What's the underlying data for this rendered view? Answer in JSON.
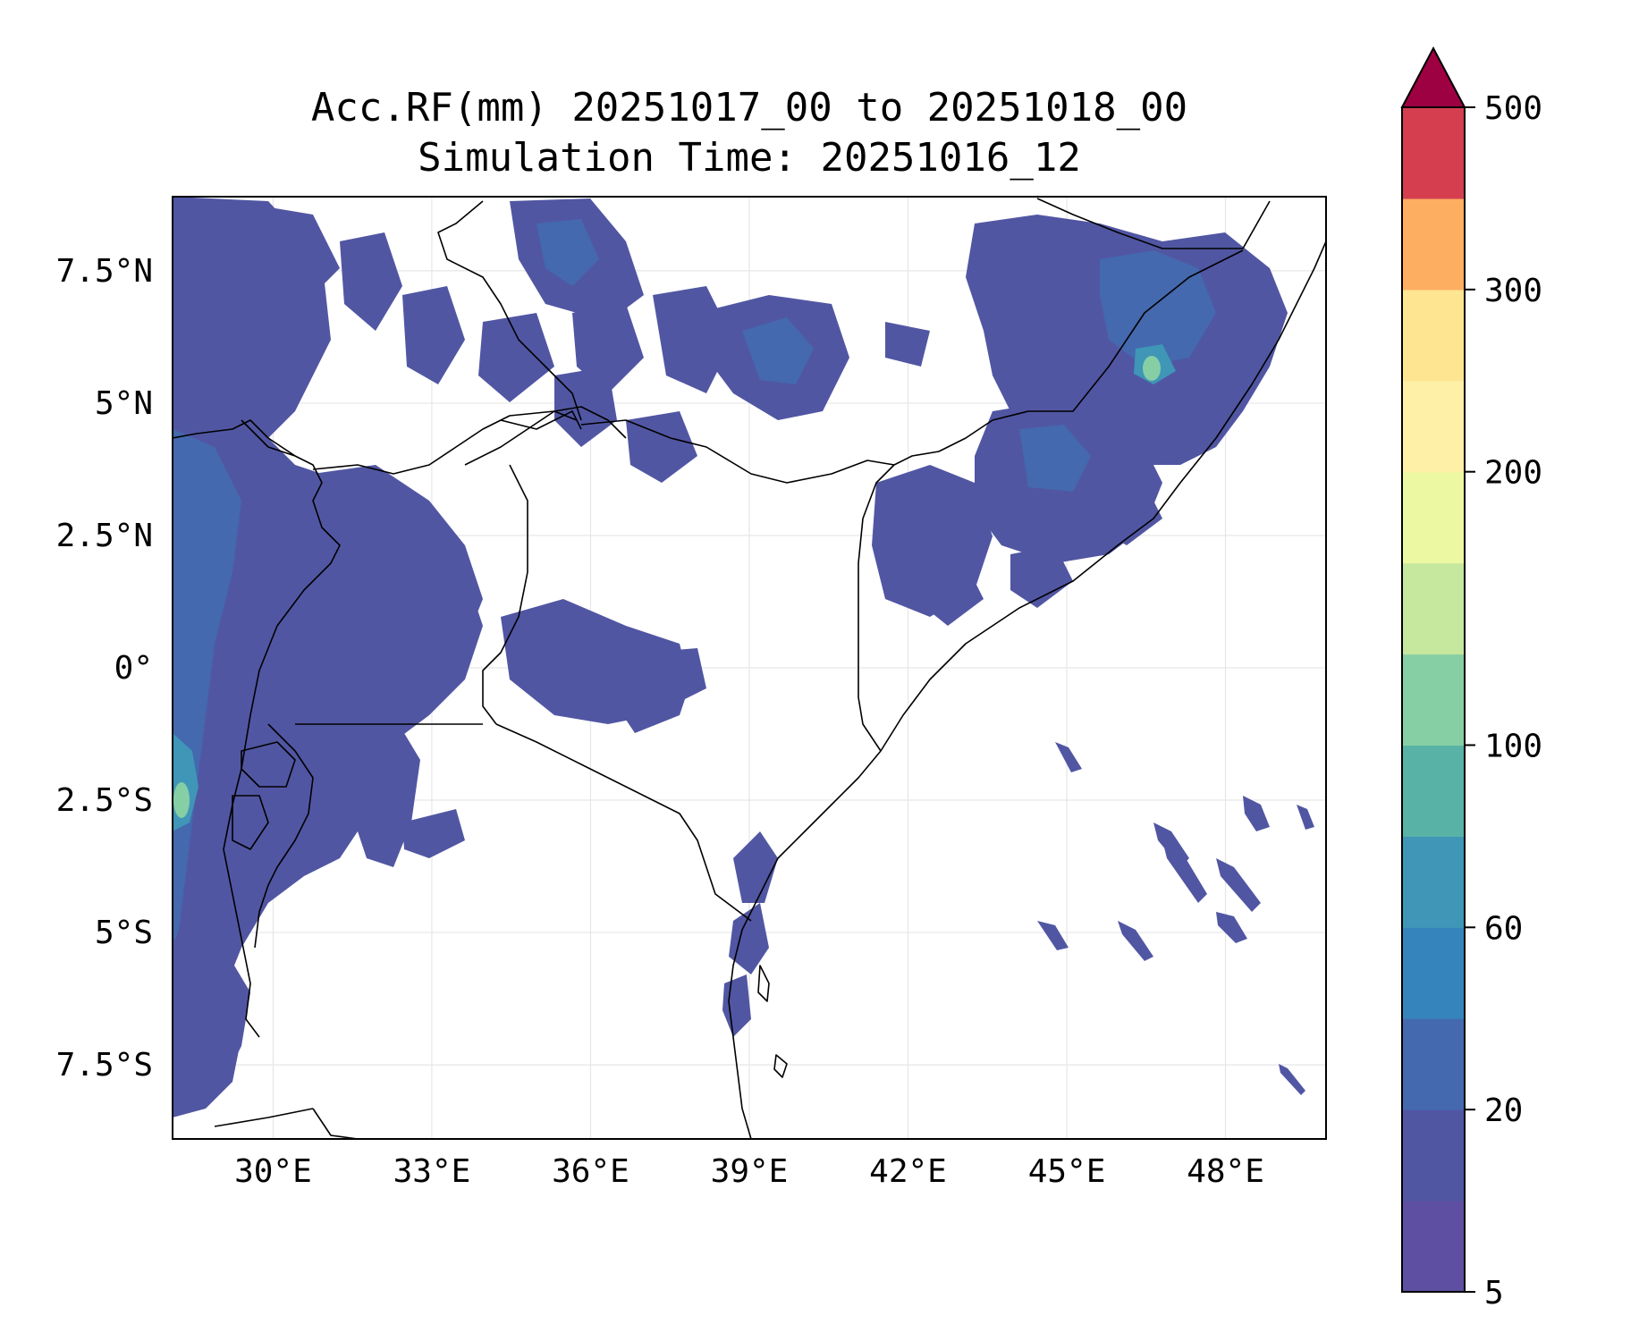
{
  "title": {
    "line1": "Acc.RF(mm) 20251017_00 to 20251018_00",
    "line2": "Simulation Time: 20251016_12"
  },
  "map": {
    "lon_range": [
      28.1,
      49.9
    ],
    "lat_range": [
      -8.9,
      8.9
    ],
    "x_ticks": [
      {
        "value": 30,
        "label": "30°E"
      },
      {
        "value": 33,
        "label": "33°E"
      },
      {
        "value": 36,
        "label": "36°E"
      },
      {
        "value": 39,
        "label": "39°E"
      },
      {
        "value": 42,
        "label": "42°E"
      },
      {
        "value": 45,
        "label": "45°E"
      },
      {
        "value": 48,
        "label": "48°E"
      }
    ],
    "y_ticks": [
      {
        "value": 7.5,
        "label": "7.5°N"
      },
      {
        "value": 5,
        "label": "5°N"
      },
      {
        "value": 2.5,
        "label": "2.5°N"
      },
      {
        "value": 0,
        "label": "0°"
      },
      {
        "value": -2.5,
        "label": "2.5°S"
      },
      {
        "value": -5,
        "label": "5°S"
      },
      {
        "value": -7.5,
        "label": "7.5°S"
      }
    ],
    "gridlines": true
  },
  "colorbar": {
    "levels": [
      5,
      10,
      20,
      40,
      60,
      80,
      100,
      125,
      150,
      200,
      250,
      300,
      350,
      500
    ],
    "colors": [
      "#5e4fa2",
      "#5156a3",
      "#4469ae",
      "#3684bc",
      "#3f96b7",
      "#58b2a5",
      "#86cfa5",
      "#c5e79e",
      "#edf8a3",
      "#fff0a8",
      "#fee592",
      "#fdae61",
      "#d53e4f"
    ],
    "extend_color": "#9e0142",
    "tick_labels": [
      {
        "level_index": 0,
        "label": "5"
      },
      {
        "level_index": 2,
        "label": "20"
      },
      {
        "level_index": 4,
        "label": "60"
      },
      {
        "level_index": 6,
        "label": "100"
      },
      {
        "level_index": 9,
        "label": "200"
      },
      {
        "level_index": 11,
        "label": "300"
      },
      {
        "level_index": 13,
        "label": "500"
      }
    ]
  },
  "rain_colors": {
    "light": "#5156a3",
    "medium": "#4469ae",
    "heavy": "#3f96b7",
    "peak": "#86cfa5"
  }
}
